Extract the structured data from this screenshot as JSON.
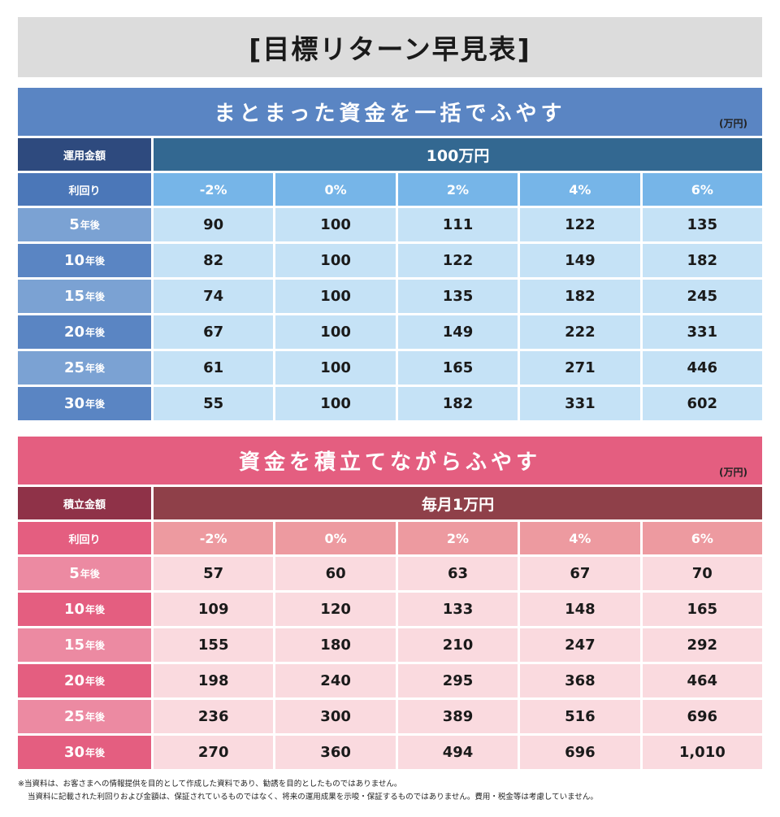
{
  "title": "[目標リターン早見表]",
  "sections": [
    {
      "title": "まとまった資金を一括でふやす",
      "unit": "(万円)",
      "amount_label": "運用金額",
      "amount_value": "100万円",
      "rate_label": "利回り",
      "rates": [
        "-2%",
        "0%",
        "2%",
        "4%",
        "6%"
      ],
      "rows": [
        {
          "year": "5",
          "suffix": "年後",
          "values": [
            "90",
            "100",
            "111",
            "122",
            "135"
          ]
        },
        {
          "year": "10",
          "suffix": "年後",
          "values": [
            "82",
            "100",
            "122",
            "149",
            "182"
          ]
        },
        {
          "year": "15",
          "suffix": "年後",
          "values": [
            "74",
            "100",
            "135",
            "182",
            "245"
          ]
        },
        {
          "year": "20",
          "suffix": "年後",
          "values": [
            "67",
            "100",
            "149",
            "222",
            "331"
          ]
        },
        {
          "year": "25",
          "suffix": "年後",
          "values": [
            "61",
            "100",
            "165",
            "271",
            "446"
          ]
        },
        {
          "year": "30",
          "suffix": "年後",
          "values": [
            "55",
            "100",
            "182",
            "331",
            "602"
          ]
        }
      ]
    },
    {
      "title": "資金を積立てながらふやす",
      "unit": "(万円)",
      "amount_label": "積立金額",
      "amount_value": "毎月1万円",
      "rate_label": "利回り",
      "rates": [
        "-2%",
        "0%",
        "2%",
        "4%",
        "6%"
      ],
      "rows": [
        {
          "year": "5",
          "suffix": "年後",
          "values": [
            "57",
            "60",
            "63",
            "67",
            "70"
          ]
        },
        {
          "year": "10",
          "suffix": "年後",
          "values": [
            "109",
            "120",
            "133",
            "148",
            "165"
          ]
        },
        {
          "year": "15",
          "suffix": "年後",
          "values": [
            "155",
            "180",
            "210",
            "247",
            "292"
          ]
        },
        {
          "year": "20",
          "suffix": "年後",
          "values": [
            "198",
            "240",
            "295",
            "368",
            "464"
          ]
        },
        {
          "year": "25",
          "suffix": "年後",
          "values": [
            "236",
            "300",
            "389",
            "516",
            "696"
          ]
        },
        {
          "year": "30",
          "suffix": "年後",
          "values": [
            "270",
            "360",
            "494",
            "696",
            "1,010"
          ]
        }
      ]
    }
  ],
  "notes": [
    "※当資料は、お客さまへの情報提供を目的として作成した資料であり、勧誘を目的としたものではありません。",
    "当資料に記載された利回りおよび金額は、保証されているものではなく、将来の運用成果を示唆・保証するものではありません。費用・税金等は考慮していません。"
  ],
  "colors": {
    "blue_header": "#5a85c3",
    "pink_header": "#e45e80",
    "blue_value_bg": "#c5e2f6",
    "pink_value_bg": "#fadadf"
  }
}
